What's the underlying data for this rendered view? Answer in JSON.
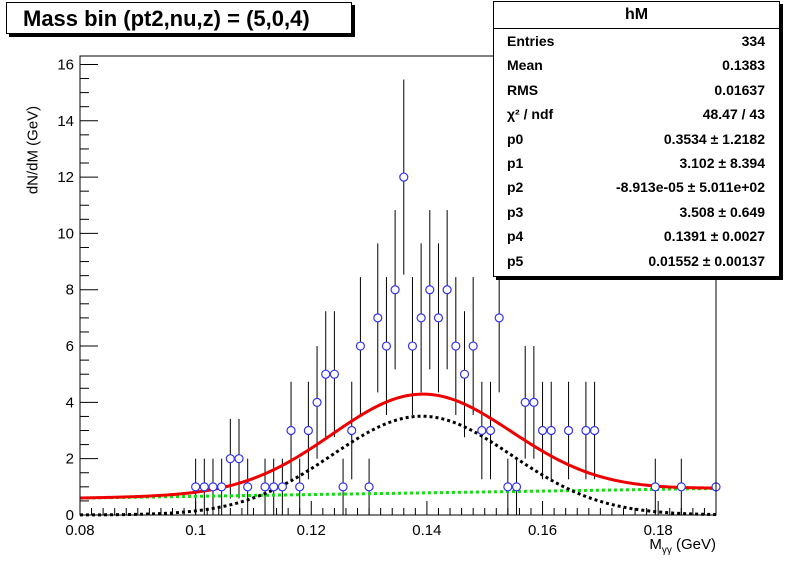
{
  "title": "Mass bin (pt2,nu,z) = (5,0,4)",
  "stats": {
    "name": "hM",
    "rows": [
      {
        "label": "Entries",
        "value": "334"
      },
      {
        "label": "Mean",
        "value": "0.1383"
      },
      {
        "label": "RMS",
        "value": "0.01637"
      },
      {
        "label": "χ² / ndf",
        "value": "48.47 / 43"
      },
      {
        "label": "p0",
        "value": "0.3534 ± 1.2182"
      },
      {
        "label": "p1",
        "value": "3.102 ± 8.394"
      },
      {
        "label": "p2",
        "value": "-8.913e-05 ± 5.011e+02"
      },
      {
        "label": "p3",
        "value": "3.508 ± 0.649"
      },
      {
        "label": "p4",
        "value": "0.1391 ± 0.0027"
      },
      {
        "label": "p5",
        "value": "0.01552 ± 0.00137"
      }
    ]
  },
  "axes": {
    "ylabel": "dN/dM (GeV)",
    "xlabel_main": "M",
    "xlabel_sub": "γγ",
    "xlabel_unit": " (GeV)"
  },
  "colors": {
    "points": "#3333ee",
    "total_fit": "#ee0000",
    "signal": "#000000",
    "background": "#11dd11"
  },
  "chart_data": {
    "type": "scatter",
    "xlim": [
      0.08,
      0.19
    ],
    "ylim": [
      0,
      16.3
    ],
    "xticks": [
      0.08,
      0.1,
      0.12,
      0.14,
      0.16,
      0.18
    ],
    "xtick_labels": [
      "0.08",
      "0.1",
      "0.12",
      "0.14",
      "0.16",
      "0.18"
    ],
    "yticks": [
      0,
      2,
      4,
      6,
      8,
      10,
      12,
      14,
      16
    ],
    "ytick_labels": [
      "0",
      "2",
      "4",
      "6",
      "8",
      "10",
      "12",
      "14",
      "16"
    ],
    "grid": false,
    "series": [
      {
        "role": "data",
        "x": [
          0.1,
          0.1015,
          0.103,
          0.1045,
          0.106,
          0.1075,
          0.109,
          0.112,
          0.1135,
          0.115,
          0.1165,
          0.118,
          0.1195,
          0.121,
          0.1225,
          0.124,
          0.1255,
          0.127,
          0.1285,
          0.13,
          0.1315,
          0.133,
          0.1345,
          0.136,
          0.1375,
          0.139,
          0.1405,
          0.142,
          0.1435,
          0.145,
          0.1465,
          0.148,
          0.1495,
          0.151,
          0.1525,
          0.154,
          0.1555,
          0.157,
          0.1585,
          0.16,
          0.1615,
          0.1645,
          0.1675,
          0.169,
          0.1795,
          0.184,
          0.19
        ],
        "y": [
          1,
          1,
          1,
          1,
          2,
          2,
          1,
          1,
          1,
          1,
          3,
          1,
          3,
          4,
          5,
          5,
          1,
          3,
          6,
          1,
          7,
          6,
          8,
          12,
          6,
          7,
          8,
          7,
          8,
          6,
          5,
          6,
          3,
          3,
          7,
          1,
          1,
          4,
          4,
          3,
          3,
          3,
          3,
          3,
          1,
          1,
          1
        ],
        "error": "sqrt"
      },
      {
        "role": "total-fit",
        "formula": "p0 + p1*x + p2*x^2 + p3*exp(-0.5*((x-p4)/p5)^2)",
        "x": [
          0.08,
          0.09,
          0.1,
          0.11,
          0.12,
          0.13,
          0.139,
          0.15,
          0.16,
          0.17,
          0.18,
          0.19
        ],
        "y": [
          0.6,
          0.64,
          0.77,
          1.17,
          2.12,
          3.42,
          4.25,
          3.53,
          2.05,
          1.27,
          1.04,
          0.95
        ]
      },
      {
        "role": "signal",
        "formula": "p3*exp(-0.5*((x-p4)/p5)^2)",
        "x": [
          0.08,
          0.09,
          0.1,
          0.11,
          0.12,
          0.13,
          0.139,
          0.15,
          0.16,
          0.17,
          0.18,
          0.19
        ],
        "y": [
          0.0,
          0.02,
          0.1,
          0.42,
          1.32,
          2.68,
          3.51,
          2.75,
          1.22,
          0.34,
          0.06,
          0.01
        ]
      },
      {
        "role": "background",
        "formula": "p0 + p1*x + p2*x^2",
        "x": [
          0.08,
          0.19
        ],
        "y": [
          0.6,
          0.94
        ]
      }
    ],
    "fit_params": {
      "p0": 0.3534,
      "p1": 3.102,
      "p2": -8.913e-05,
      "p3": 3.508,
      "p4": 0.1391,
      "p5": 0.01552
    }
  }
}
